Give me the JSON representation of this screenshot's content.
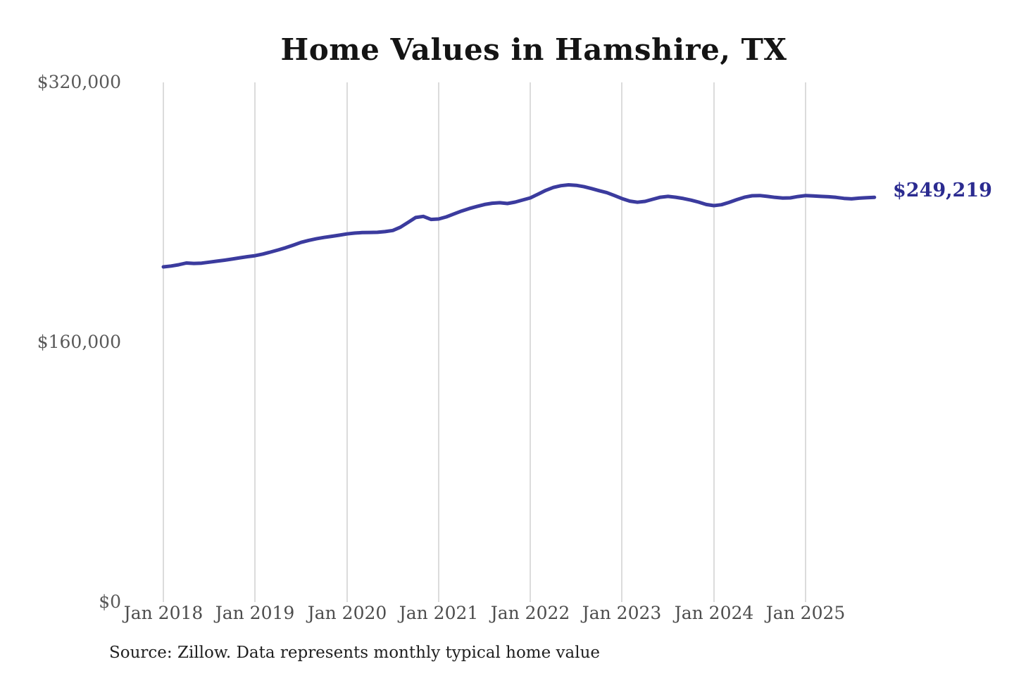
{
  "page": {
    "background": "#ffffff"
  },
  "source_note": "Source: Zillow. Data represents monthly typical home value",
  "chart_data": {
    "type": "line",
    "title": "Home Values in Hamshire, TX",
    "xlabel": "",
    "ylabel": "",
    "ylim": [
      0,
      320000
    ],
    "grid": "vertical-only",
    "legend": "none",
    "interval": "monthly",
    "x_start_month": "Jan 2018",
    "x_end_month": "Oct 2025",
    "xticks": [
      "Jan 2018",
      "Jan 2019",
      "Jan 2020",
      "Jan 2021",
      "Jan 2022",
      "Jan 2023",
      "Jan 2024",
      "Jan 2025"
    ],
    "yticks": [
      {
        "value": 320000,
        "label": "$320,000"
      },
      {
        "value": 160000,
        "label": "$160,000"
      },
      {
        "value": 0,
        "label": "$0"
      }
    ],
    "end_label": "$249,219",
    "end_value": 249219,
    "colors": {
      "line": "#3b3b9e",
      "end_label": "#2b2b90",
      "gridline": "#cccccc",
      "title": "#141414",
      "tick_text": "#595959"
    },
    "series": [
      {
        "name": "Typical home value",
        "monthly_values": [
          206400,
          206900,
          207700,
          208800,
          208500,
          208700,
          209300,
          209900,
          210500,
          211200,
          212000,
          212700,
          213300,
          214300,
          215500,
          216800,
          218200,
          219800,
          221500,
          222700,
          223700,
          224500,
          225200,
          225900,
          226700,
          227200,
          227500,
          227600,
          227700,
          228100,
          228800,
          230800,
          233800,
          236800,
          237500,
          235600,
          235900,
          237200,
          239000,
          240800,
          242300,
          243600,
          244800,
          245600,
          245900,
          245400,
          246300,
          247600,
          248900,
          251200,
          253500,
          255300,
          256400,
          256900,
          256600,
          255800,
          254600,
          253300,
          252100,
          250300,
          248400,
          246900,
          246200,
          246700,
          248000,
          249300,
          249800,
          249300,
          248500,
          247500,
          246300,
          244800,
          244100,
          244700,
          246100,
          247800,
          249300,
          250200,
          250300,
          249800,
          249200,
          248800,
          248900,
          249700,
          250300,
          250100,
          249800,
          249600,
          249200,
          248600,
          248300,
          248700,
          249000,
          249219
        ]
      }
    ]
  }
}
